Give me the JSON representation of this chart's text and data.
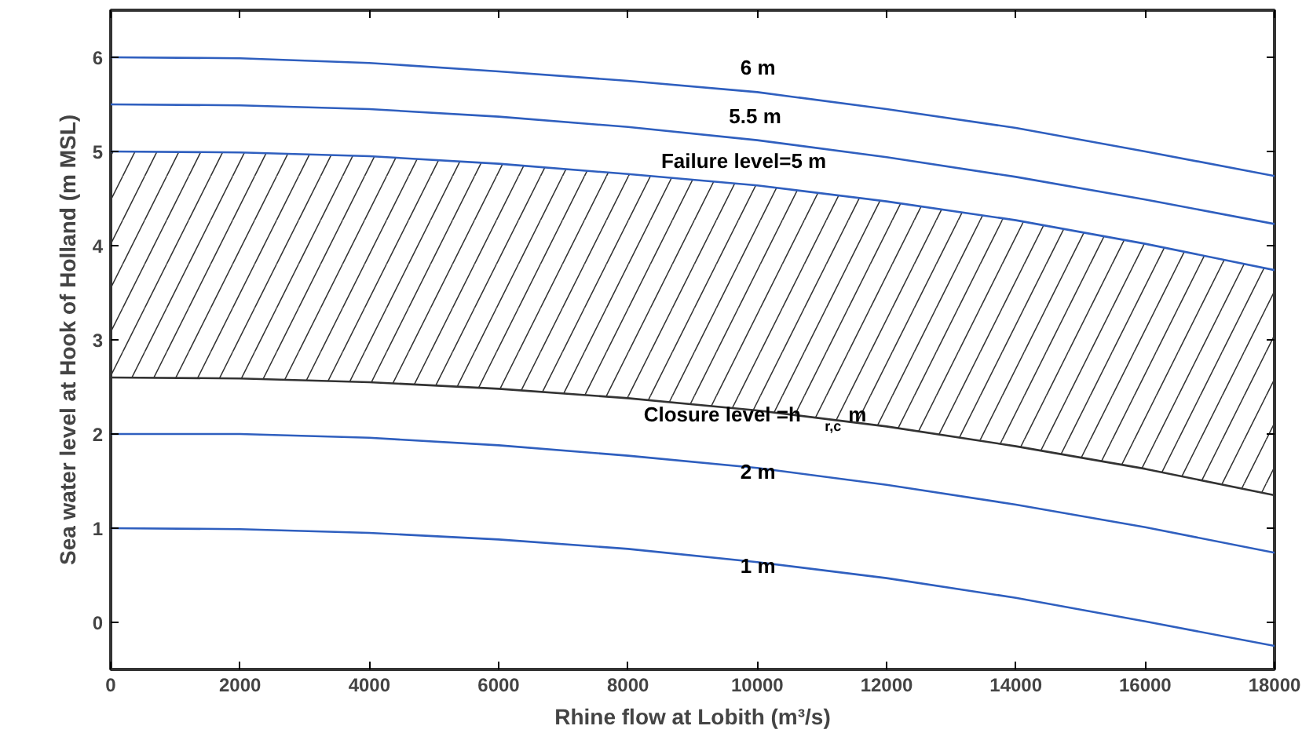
{
  "chart_data": {
    "type": "line",
    "xlabel": "Rhine flow at Lobith (m³/s)",
    "ylabel": "Sea water level at Hook of Holland (m MSL)",
    "x": [
      0,
      2000,
      4000,
      6000,
      8000,
      10000,
      12000,
      14000,
      16000,
      18000
    ],
    "xlim": [
      0,
      18000
    ],
    "xticks": [
      0,
      2000,
      4000,
      6000,
      8000,
      10000,
      12000,
      14000,
      16000,
      18000
    ],
    "ylim": [
      -0.5,
      6.5
    ],
    "yticks": [
      0,
      1,
      2,
      3,
      4,
      5,
      6
    ],
    "grid": false,
    "legend": false,
    "marker": "none",
    "line_style": "solid",
    "series": [
      {
        "name": "6 m",
        "color": "#2f5fbf",
        "values": [
          6.0,
          5.99,
          5.94,
          5.85,
          5.75,
          5.63,
          5.45,
          5.25,
          5.0,
          4.74
        ]
      },
      {
        "name": "5.5 m",
        "color": "#2f5fbf",
        "values": [
          5.5,
          5.49,
          5.45,
          5.37,
          5.26,
          5.12,
          4.94,
          4.73,
          4.49,
          4.23
        ]
      },
      {
        "name": "Failure level=5 m",
        "color": "#2f5fbf",
        "values": [
          5.0,
          4.99,
          4.95,
          4.87,
          4.76,
          4.64,
          4.47,
          4.27,
          4.02,
          3.74
        ]
      },
      {
        "name": "Closure level =h$_{r,c}$ m",
        "color": "#333333",
        "values": [
          2.6,
          2.59,
          2.55,
          2.48,
          2.38,
          2.25,
          2.08,
          1.87,
          1.63,
          1.35
        ],
        "lower": [
          2.6,
          2.59,
          2.55,
          2.48,
          2.38,
          2.25,
          2.08,
          1.87,
          1.63,
          1.35
        ],
        "upper": [
          5.0,
          4.99,
          4.95,
          4.87,
          4.76,
          4.64,
          4.47,
          4.27,
          4.02,
          3.74
        ]
      },
      {
        "name": "2 m",
        "color": "#2f5fbf",
        "values": [
          2.0,
          2.0,
          1.96,
          1.88,
          1.77,
          1.64,
          1.46,
          1.25,
          1.01,
          0.74
        ]
      },
      {
        "name": "1 m",
        "color": "#2f5fbf",
        "values": [
          1.0,
          0.99,
          0.95,
          0.88,
          0.78,
          0.64,
          0.47,
          0.26,
          0.01,
          -0.25
        ]
      }
    ]
  }
}
